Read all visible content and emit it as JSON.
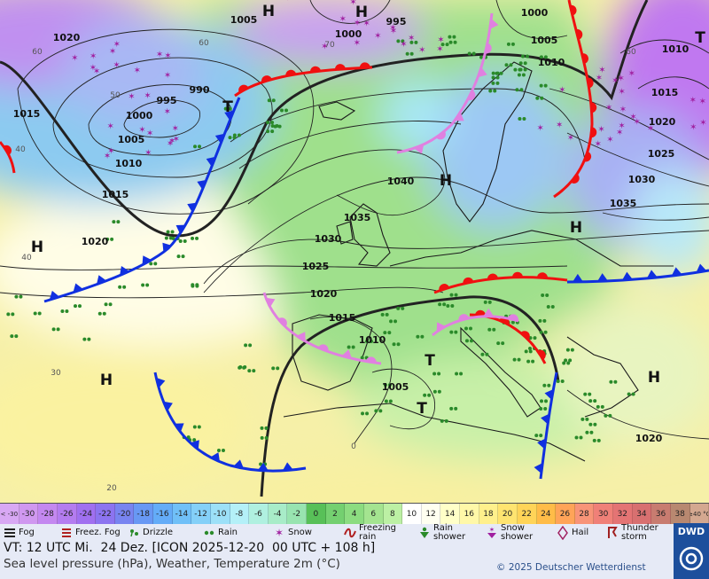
{
  "map": {
    "isobar_labels": [
      1005,
      1000,
      995,
      1000,
      1020,
      1005,
      1010,
      1010,
      1015,
      990,
      995,
      1000,
      1005,
      1010,
      1015,
      1020,
      1040,
      1035,
      1030,
      1025,
      1020,
      1015,
      1010,
      1005,
      1030,
      1035,
      1025,
      1020,
      1015,
      1020
    ],
    "isotherm_labels": [
      60,
      50,
      40,
      40,
      30,
      20,
      0,
      60,
      70,
      60
    ],
    "pressure_centers": [
      "H",
      "H",
      "T",
      "T",
      "H",
      "H",
      "H",
      "H",
      "H",
      "T",
      "T"
    ]
  },
  "temperature_scale": {
    "items": [
      {
        "value": -30,
        "label": "< -30"
      },
      -30,
      -28,
      -26,
      -24,
      -22,
      -20,
      -18,
      -16,
      -14,
      -12,
      -10,
      -8,
      -6,
      -4,
      -2,
      0,
      2,
      4,
      6,
      8,
      10,
      12,
      14,
      16,
      18,
      20,
      22,
      24,
      26,
      28,
      30,
      32,
      34,
      36,
      38,
      {
        "value": 40,
        "label": "≥40 °C"
      }
    ],
    "colors": [
      "#d8a8f4",
      "#d098f0",
      "#c488f0",
      "#b47cf0",
      "#a070f0",
      "#8c74f0",
      "#7884f0",
      "#6898f4",
      "#64acf8",
      "#70c0f8",
      "#84d0f8",
      "#9ce0f8",
      "#b4f0f8",
      "#b0f0e0",
      "#a8ecc8",
      "#98e4b0",
      "#58c058",
      "#74d070",
      "#8cdc80",
      "#a4e490",
      "#bcf0a4",
      "#ffffff",
      "#fffff0",
      "#ffffc8",
      "#fff8a8",
      "#fff08c",
      "#ffe470",
      "#ffd458",
      "#ffbc48",
      "#ffa458",
      "#f89478",
      "#f08078",
      "#e47474",
      "#d87070",
      "#c87c70",
      "#b88870",
      "#d4a890"
    ]
  },
  "weather_legend": [
    "Fog",
    "Freez. Fog",
    "Drizzle",
    "Rain",
    "Snow",
    "Freezing rain",
    "Rain shower",
    "Snow shower",
    "Hail",
    "Thunder storm"
  ],
  "footer": {
    "valid_time": "VT: 12 UTC Mi.  24 Dez. [ICON 2025-12-20  00 UTC + 108 h]",
    "description": "Sea level pressure (hPa), Weather, Temperature 2m (°C)",
    "copyright": "© 2025 Deutscher Wetterdienst",
    "logo": "DWD"
  }
}
